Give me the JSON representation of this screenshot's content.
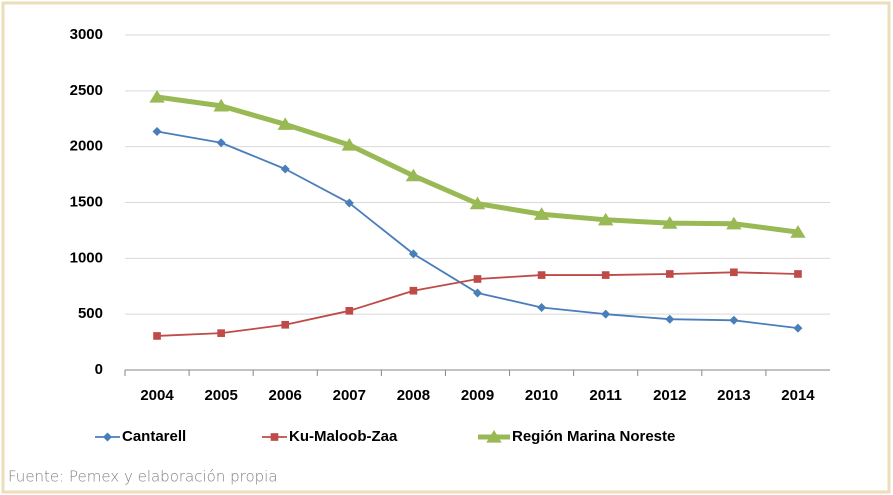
{
  "chart_data": {
    "type": "line",
    "categories": [
      "2004",
      "2005",
      "2006",
      "2007",
      "2008",
      "2009",
      "2010",
      "2011",
      "2012",
      "2013",
      "2014"
    ],
    "series": [
      {
        "name": "Cantarell",
        "color": "#4a7ebb",
        "marker": "diamond",
        "values": [
          2136,
          2035,
          1800,
          1495,
          1040,
          690,
          560,
          500,
          455,
          445,
          375
        ]
      },
      {
        "name": "Ku-Maloob-Zaa",
        "color": "#be4b48",
        "marker": "square",
        "values": [
          305,
          330,
          405,
          530,
          710,
          815,
          850,
          850,
          860,
          875,
          860
        ]
      },
      {
        "name": "Región Marina Noreste",
        "color": "#98b954",
        "marker": "triangle",
        "values": [
          2445,
          2365,
          2200,
          2015,
          1740,
          1490,
          1395,
          1345,
          1315,
          1310,
          1235
        ]
      }
    ],
    "ylim": [
      0,
      3000
    ],
    "yticks": [
      0,
      500,
      1000,
      1500,
      2000,
      2500,
      3000
    ],
    "grid": true,
    "legend": "bottom",
    "note": "Fuente: Pemex y elaboración propia"
  }
}
